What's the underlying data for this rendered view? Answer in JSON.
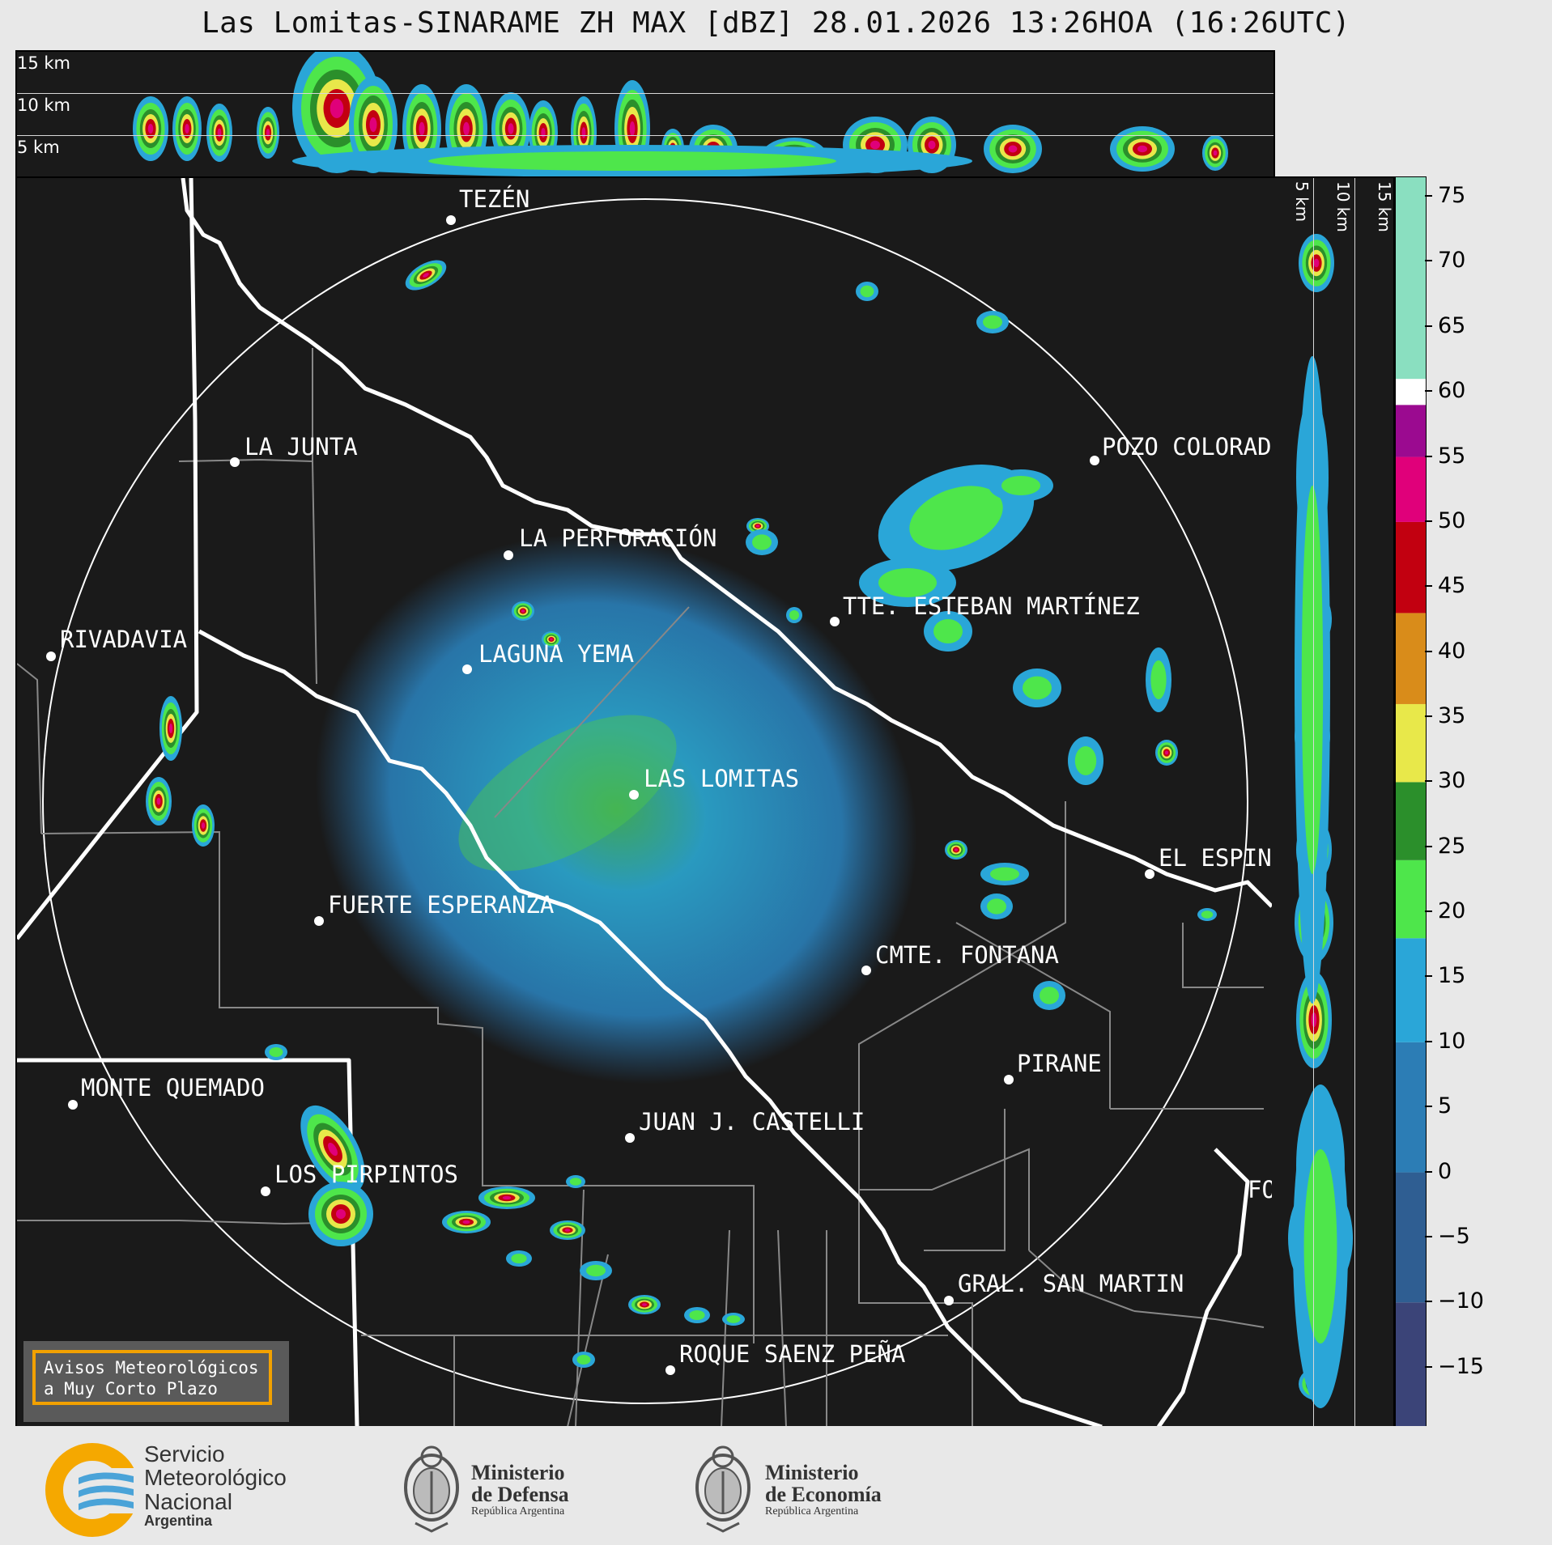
{
  "title": "Las Lomitas-SINARAME ZH MAX [dBZ] 28.01.2026 13:26HOA (16:26UTC)",
  "top_panel": {
    "height_labels": [
      "15 km",
      "10 km",
      "5 km"
    ]
  },
  "side_panel": {
    "height_labels": [
      "5 km",
      "10 km",
      "15 km"
    ]
  },
  "colorbar": {
    "unit": "dBZ",
    "min": -19.5,
    "max": 76.5,
    "tick_labels": [
      "75",
      "70",
      "65",
      "60",
      "55",
      "50",
      "45",
      "40",
      "35",
      "30",
      "25",
      "20",
      "15",
      "10",
      "5",
      "0",
      "−5",
      "−10",
      "−15"
    ],
    "stops": [
      {
        "from": -19.5,
        "to": -10,
        "color": "#3b4478"
      },
      {
        "from": -10,
        "to": 0,
        "color": "#2f5e92"
      },
      {
        "from": 0,
        "to": 10,
        "color": "#2c7db5"
      },
      {
        "from": 10,
        "to": 18,
        "color": "#2aa6d8"
      },
      {
        "from": 18,
        "to": 24,
        "color": "#4ee64b"
      },
      {
        "from": 24,
        "to": 30,
        "color": "#2b8f2b"
      },
      {
        "from": 30,
        "to": 36,
        "color": "#e8e84a"
      },
      {
        "from": 36,
        "to": 43,
        "color": "#d98c1a"
      },
      {
        "from": 43,
        "to": 50,
        "color": "#c20010"
      },
      {
        "from": 50,
        "to": 55,
        "color": "#e0007a"
      },
      {
        "from": 55,
        "to": 59,
        "color": "#9b0a90"
      },
      {
        "from": 59,
        "to": 61,
        "color": "#ffffff"
      },
      {
        "from": 61,
        "to": 76.5,
        "color": "#8adfc0"
      }
    ]
  },
  "cities": [
    {
      "name": "TEZÉN"
    },
    {
      "name": "LA JUNTA"
    },
    {
      "name": "POZO COLORADO"
    },
    {
      "name": "LA PERFORACIÓN"
    },
    {
      "name": "TTE. ESTEBAN MARTÍNEZ"
    },
    {
      "name": "RIVADAVIA"
    },
    {
      "name": "LAGUNA YEMA"
    },
    {
      "name": "LAS LOMITAS"
    },
    {
      "name": "EL ESPINILLO"
    },
    {
      "name": "FUERTE ESPERANZA"
    },
    {
      "name": "CMTE. FONTANA"
    },
    {
      "name": "PIRANE"
    },
    {
      "name": "MONTE QUEMADO"
    },
    {
      "name": "JUAN J. CASTELLI"
    },
    {
      "name": "LOS PIRPINTOS"
    },
    {
      "name": "GRAL. SAN MARTIN"
    },
    {
      "name": "ROQUE SAENZ PEÑA"
    },
    {
      "name": "FORMOSA"
    }
  ],
  "warning": {
    "line1": "Avisos Meteorológicos",
    "line2": "a Muy Corto Plazo"
  },
  "footer": {
    "smn": {
      "line1": "Servicio",
      "line2": "Meteorológico",
      "line3": "Nacional",
      "line4": "Argentina"
    },
    "defensa": {
      "line1": "Ministerio",
      "line2": "de Defensa",
      "line3": "República Argentina"
    },
    "economia": {
      "line1": "Ministerio",
      "line2": "de Economía",
      "line3": "República Argentina"
    }
  },
  "colors": {
    "background": "#1a1a1a",
    "page": "#e8e8e8",
    "warning_border": "#f2a100",
    "smn_blue": "#4aa3d8",
    "smn_orange": "#f5a800"
  }
}
